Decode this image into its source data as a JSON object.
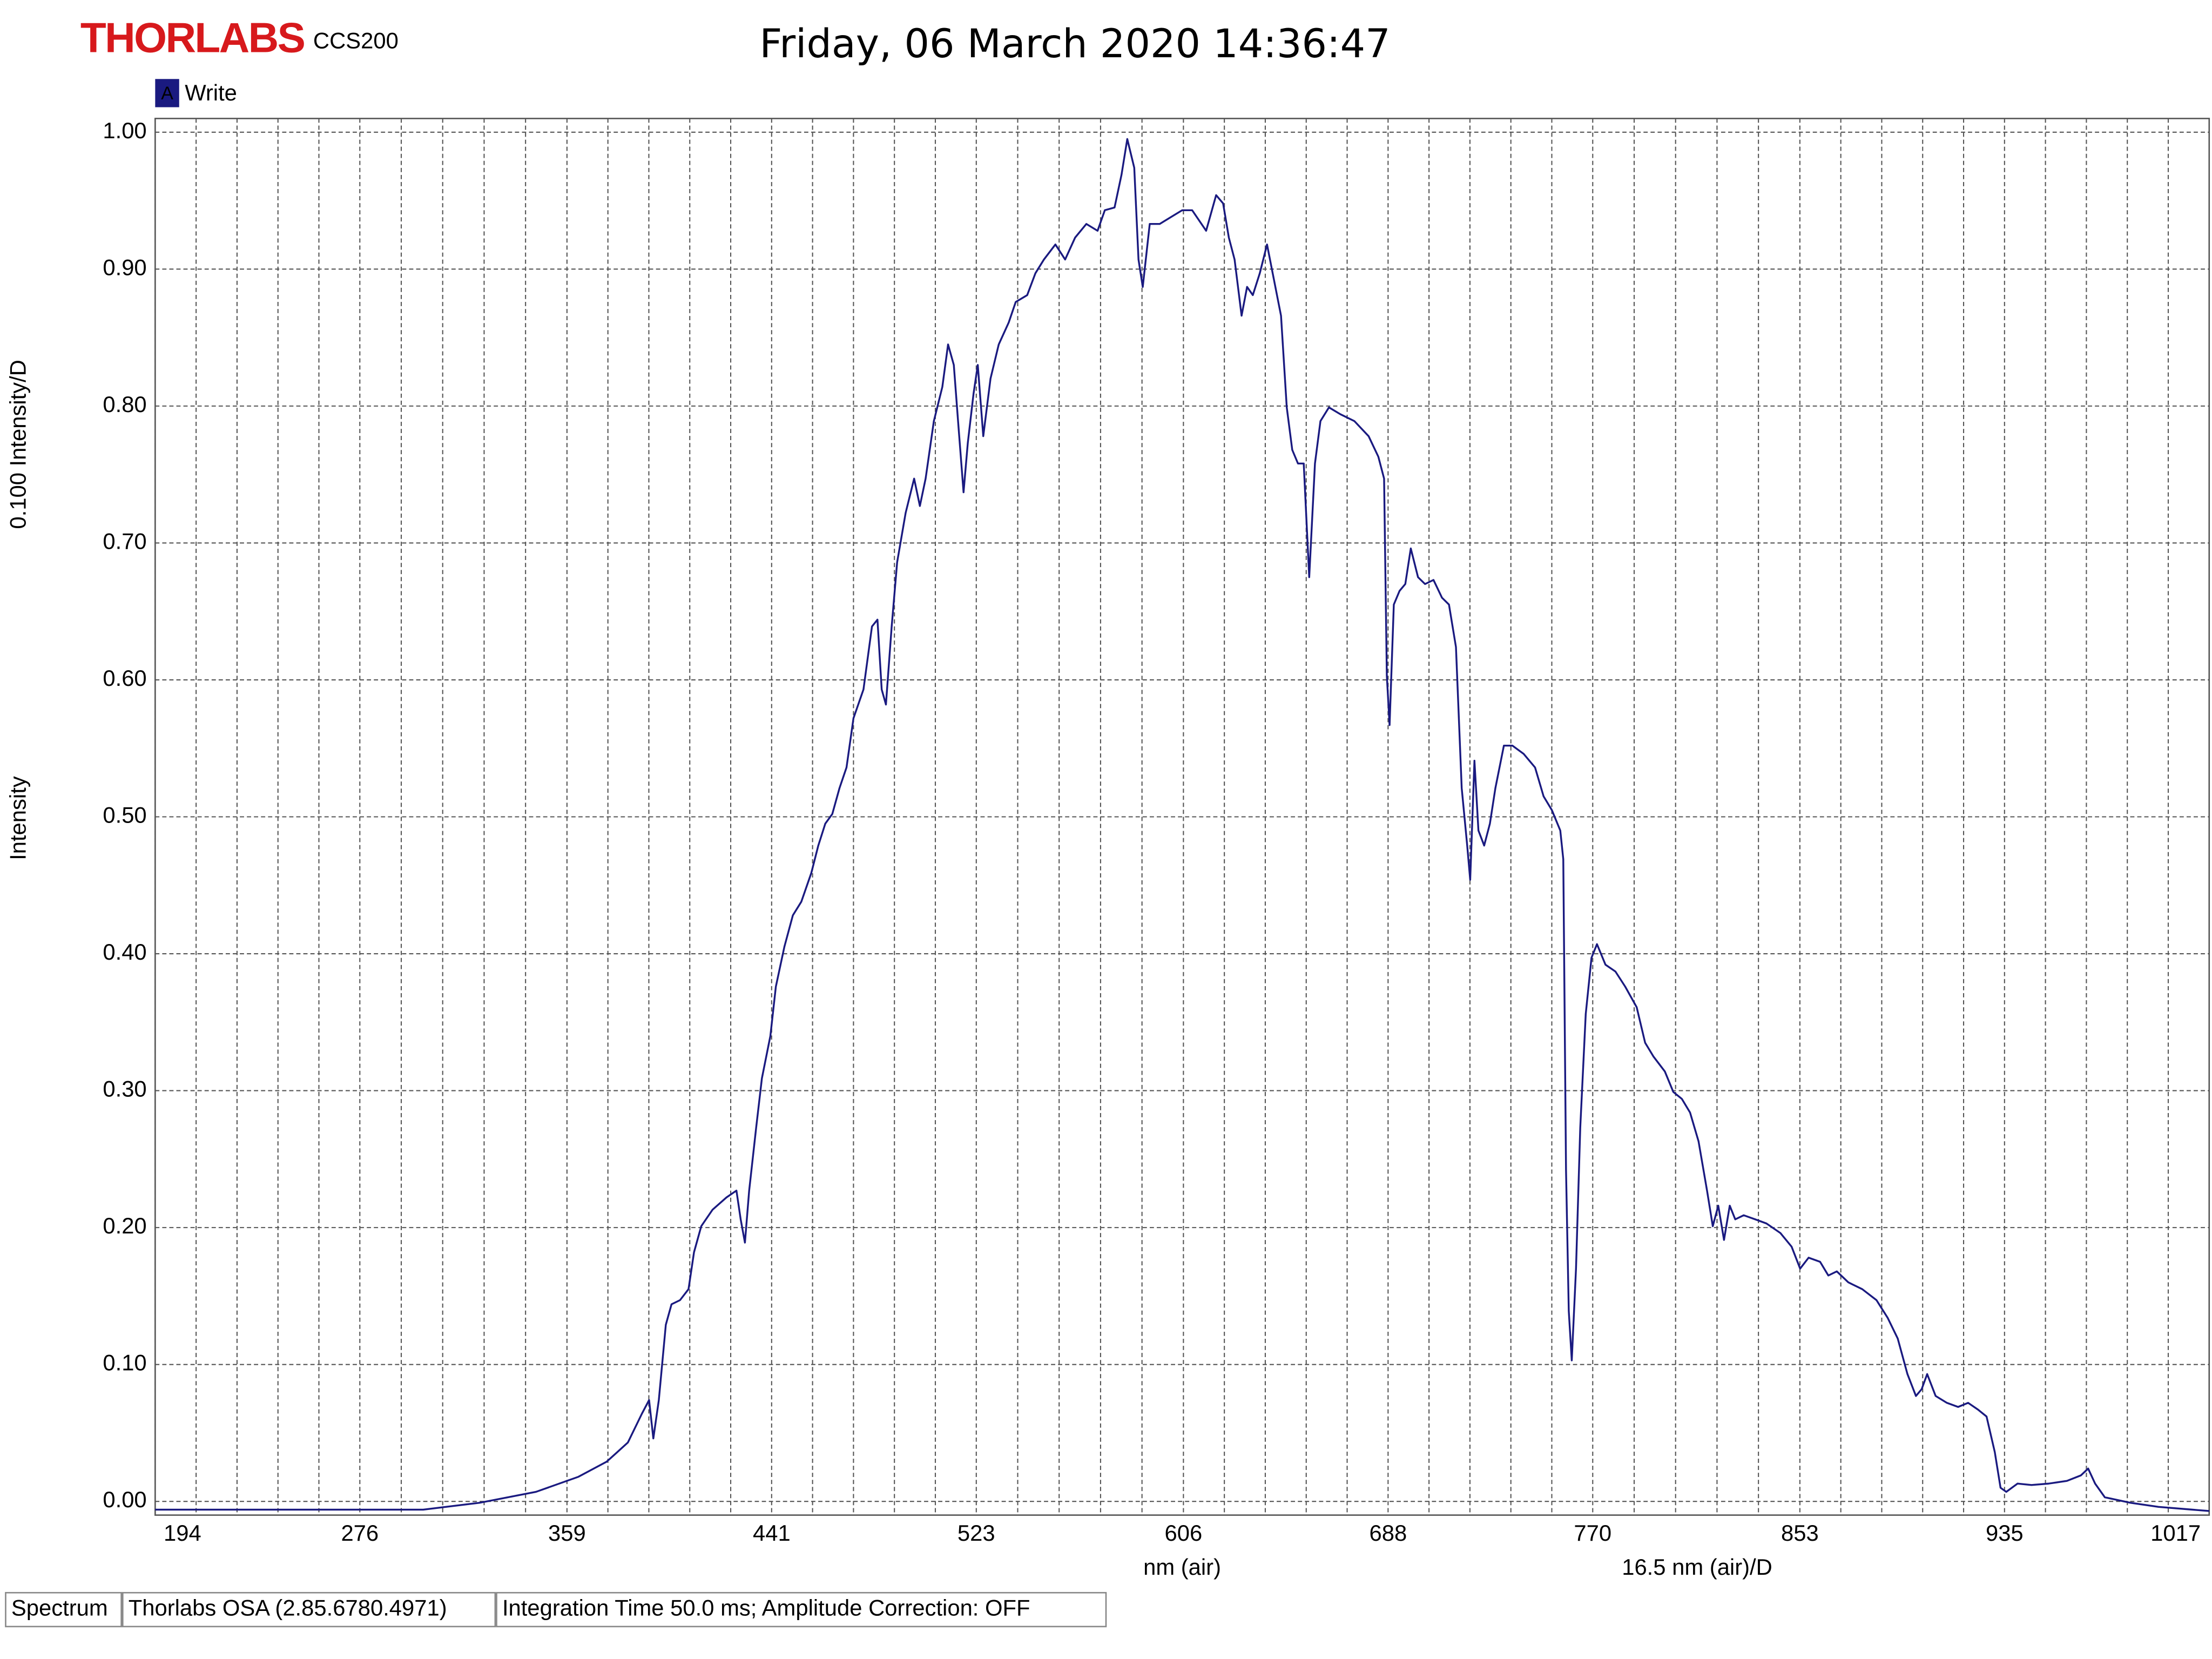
{
  "chart_data": {
    "type": "line",
    "brand": "THORLABS",
    "model": "CCS200",
    "title": "Friday, 06 March 2020 14:36:47",
    "legend_tag": "A",
    "ylabel": "Intensity",
    "ydiv_label": "0.100 Intensity/D",
    "xlabel": "nm (air)",
    "xdiv_label": "16.5 nm (air)/D",
    "grid": true,
    "xlim": [
      194,
      1017
    ],
    "xticks": [
      194,
      276,
      359,
      441,
      523,
      606,
      688,
      770,
      853,
      935,
      1017
    ],
    "ylim": [
      -0.01,
      1.01
    ],
    "yticks": [
      {
        "value": 0,
        "label": "0.00"
      },
      {
        "value": 0.1,
        "label": "0.10"
      },
      {
        "value": 0.2,
        "label": "0.20"
      },
      {
        "value": 0.3,
        "label": "0.30"
      },
      {
        "value": 0.4,
        "label": "0.40"
      },
      {
        "value": 0.5,
        "label": "0.50"
      },
      {
        "value": 0.6,
        "label": "0.60"
      },
      {
        "value": 0.7,
        "label": "0.70"
      },
      {
        "value": 0.8,
        "label": "0.80"
      },
      {
        "value": 0.9,
        "label": "0.90"
      },
      {
        "value": 1.0,
        "label": "1.00"
      }
    ],
    "x": [
      194.0,
      301.4,
      324.0,
      346.6,
      363.6,
      374.9,
      383.4,
      389.0,
      391.9,
      393.6,
      395.8,
      398.6,
      400.9,
      404.3,
      407.7,
      409.9,
      412.8,
      417.3,
      422.9,
      426.9,
      428.6,
      430.3,
      432.0,
      434.8,
      437.1,
      440.5,
      442.7,
      446.1,
      449.5,
      452.9,
      456.9,
      459.7,
      462.5,
      465.3,
      468.2,
      471.0,
      473.8,
      477.8,
      481.2,
      483.4,
      485.1,
      486.8,
      489.1,
      491.3,
      494.7,
      498.1,
      500.4,
      502.7,
      506.0,
      509.4,
      511.7,
      514.0,
      515.7,
      517.9,
      519.6,
      521.9,
      523.6,
      525.8,
      528.7,
      532.0,
      536.0,
      538.8,
      543.4,
      546.7,
      550.1,
      554.7,
      558.6,
      562.6,
      567.1,
      571.6,
      574.5,
      578.4,
      581.2,
      583.5,
      586.3,
      588.0,
      589.7,
      592.5,
      596.5,
      601.0,
      605.5,
      609.5,
      615.1,
      619.1,
      621.9,
      624.2,
      626.5,
      629.3,
      631.5,
      633.8,
      636.6,
      639.5,
      642.3,
      645.1,
      647.4,
      649.6,
      651.9,
      654.2,
      656.4,
      658.7,
      660.9,
      664.3,
      668.9,
      674.5,
      680.2,
      684.1,
      686.4,
      687.5,
      688.6,
      690.3,
      692.6,
      694.9,
      697.1,
      700.0,
      702.8,
      706.2,
      709.6,
      712.4,
      715.2,
      717.5,
      719.7,
      720.9,
      722.6,
      724.2,
      726.5,
      728.8,
      731.0,
      734.4,
      737.8,
      742.3,
      746.9,
      750.3,
      753.6,
      757.0,
      758.2,
      759.3,
      760.4,
      761.6,
      763.3,
      765.0,
      767.2,
      769.5,
      771.7,
      775.1,
      779.1,
      783.0,
      787.6,
      791.0,
      794.3,
      798.9,
      802.3,
      805.7,
      809.0,
      812.4,
      815.8,
      818.1,
      820.3,
      822.6,
      824.9,
      827.1,
      830.5,
      835.1,
      839.6,
      845.2,
      849.7,
      853.1,
      856.5,
      861.1,
      864.4,
      867.8,
      872.4,
      878.0,
      883.7,
      888.2,
      892.2,
      896.1,
      899.5,
      901.8,
      904.0,
      907.4,
      911.9,
      916.4,
      920.4,
      924.4,
      927.8,
      931.1,
      933.4,
      935.7,
      940.2,
      945.8,
      952.6,
      960.0,
      965.6,
      968.5,
      971.3,
      975.2,
      985.4,
      996.7,
      1017.0
    ],
    "series": [
      {
        "name": "Write",
        "color": "#1a1a80",
        "values": [
          -0.006,
          -0.006,
          -0.001,
          0.007,
          0.018,
          0.029,
          0.043,
          0.064,
          0.074,
          0.046,
          0.074,
          0.129,
          0.144,
          0.147,
          0.155,
          0.182,
          0.201,
          0.213,
          0.222,
          0.227,
          0.206,
          0.189,
          0.227,
          0.273,
          0.309,
          0.34,
          0.376,
          0.405,
          0.428,
          0.438,
          0.459,
          0.479,
          0.495,
          0.502,
          0.521,
          0.536,
          0.572,
          0.593,
          0.639,
          0.644,
          0.593,
          0.582,
          0.639,
          0.686,
          0.722,
          0.747,
          0.727,
          0.747,
          0.789,
          0.814,
          0.845,
          0.83,
          0.789,
          0.737,
          0.773,
          0.809,
          0.83,
          0.778,
          0.82,
          0.845,
          0.861,
          0.876,
          0.881,
          0.897,
          0.907,
          0.918,
          0.907,
          0.923,
          0.933,
          0.928,
          0.943,
          0.945,
          0.969,
          0.995,
          0.974,
          0.907,
          0.887,
          0.933,
          0.933,
          0.938,
          0.943,
          0.943,
          0.928,
          0.954,
          0.948,
          0.923,
          0.907,
          0.866,
          0.887,
          0.881,
          0.897,
          0.918,
          0.892,
          0.866,
          0.799,
          0.768,
          0.758,
          0.758,
          0.675,
          0.758,
          0.789,
          0.799,
          0.794,
          0.789,
          0.778,
          0.763,
          0.747,
          0.603,
          0.567,
          0.655,
          0.665,
          0.67,
          0.696,
          0.675,
          0.67,
          0.673,
          0.66,
          0.655,
          0.624,
          0.521,
          0.479,
          0.454,
          0.541,
          0.49,
          0.479,
          0.495,
          0.521,
          0.552,
          0.552,
          0.546,
          0.536,
          0.515,
          0.505,
          0.49,
          0.469,
          0.242,
          0.139,
          0.103,
          0.17,
          0.273,
          0.356,
          0.397,
          0.407,
          0.392,
          0.387,
          0.376,
          0.361,
          0.335,
          0.325,
          0.314,
          0.299,
          0.294,
          0.284,
          0.263,
          0.227,
          0.201,
          0.216,
          0.191,
          0.216,
          0.206,
          0.209,
          0.206,
          0.203,
          0.196,
          0.186,
          0.17,
          0.178,
          0.175,
          0.165,
          0.168,
          0.16,
          0.155,
          0.147,
          0.134,
          0.119,
          0.093,
          0.077,
          0.082,
          0.093,
          0.077,
          0.072,
          0.069,
          0.072,
          0.067,
          0.062,
          0.036,
          0.01,
          0.007,
          0.013,
          0.012,
          0.013,
          0.015,
          0.019,
          0.024,
          0.013,
          0.003,
          -0.001,
          -0.004,
          -0.007
        ]
      }
    ]
  },
  "status_bar": [
    "Spectrum",
    "Thorlabs OSA (2.85.6780.4971)",
    "Integration Time 50.0 ms; Amplitude Correction: OFF"
  ]
}
